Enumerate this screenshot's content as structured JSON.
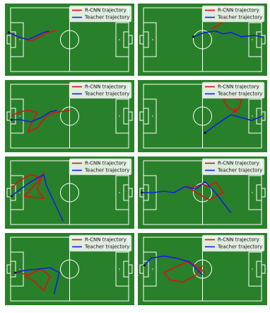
{
  "panels": [
    {
      "legend": [
        "R-CNN trajectory",
        "Teacher trajectory"
      ]
    },
    {
      "legend": [
        "R-CNN trajectory",
        "Teacher trajectory"
      ]
    },
    {
      "legend": [
        "R-CNN trajectory",
        "Teacher trajectory"
      ]
    },
    {
      "legend": [
        "R-CNN trajectory",
        "Teacher trajectory"
      ]
    },
    {
      "legend": [
        "R-CNN trajectory",
        "Teacher trajectory"
      ]
    },
    {
      "legend": [
        "R-CNN trajectory",
        "Teacher trajectory"
      ]
    },
    {
      "legend": [
        "R-CNN trajectory",
        "Teacher trajectory"
      ]
    },
    {
      "legend": [
        "R-CNN trajectory",
        "Teacher trajectory"
      ]
    }
  ]
}
